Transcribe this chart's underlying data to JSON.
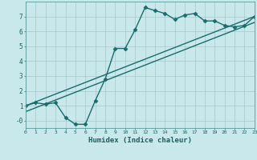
{
  "xlabel": "Humidex (Indice chaleur)",
  "background_color": "#c8e8ec",
  "grid_color": "#a8c8cc",
  "line_color": "#1a6b6b",
  "line1_x": [
    0,
    1,
    2,
    3,
    4,
    5,
    6,
    7,
    8,
    9,
    10,
    11,
    12,
    13,
    14,
    15,
    16,
    17,
    18,
    19,
    20,
    21,
    22,
    23
  ],
  "line1_y": [
    1.0,
    1.2,
    1.1,
    1.2,
    0.2,
    -0.25,
    -0.25,
    1.35,
    2.8,
    4.85,
    4.85,
    6.1,
    7.6,
    7.4,
    7.2,
    6.8,
    7.1,
    7.2,
    6.7,
    6.7,
    6.4,
    6.3,
    6.4,
    7.0
  ],
  "line2_x": [
    0,
    23
  ],
  "line2_y": [
    1.0,
    7.0
  ],
  "line3_x": [
    0,
    23
  ],
  "line3_y": [
    0.6,
    6.6
  ],
  "xlim": [
    0,
    23
  ],
  "ylim": [
    -0.5,
    8.0
  ],
  "xticks": [
    0,
    1,
    2,
    3,
    4,
    5,
    6,
    7,
    8,
    9,
    10,
    11,
    12,
    13,
    14,
    15,
    16,
    17,
    18,
    19,
    20,
    21,
    22,
    23
  ],
  "yticks": [
    0,
    1,
    2,
    3,
    4,
    5,
    6,
    7
  ],
  "ytick_labels": [
    "-0",
    "1",
    "2",
    "3",
    "4",
    "5",
    "6",
    "7"
  ],
  "marker": "D",
  "markersize": 2.5,
  "linewidth": 1.0
}
